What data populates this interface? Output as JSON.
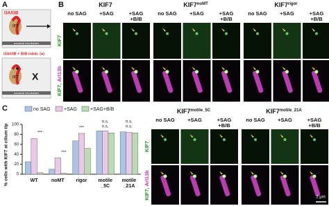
{
  "panel_labels": [
    "A",
    "B",
    "C"
  ],
  "panel_a": {
    "top_label": "I3A/I3B",
    "ift_top": "IFT",
    "bottom_label": "I3A/I3B + B/B inhib. (●)",
    "ift_bottom": "IFT",
    "block": "X",
    "axoneme_top": "axonemal microtubules",
    "axoneme_bottom": "axonemal microtubules"
  },
  "panel_b": {
    "groups": [
      {
        "name": "KIF7"
      },
      {
        "name": "KIF7",
        "sup": "noMT"
      },
      {
        "name": "KIF7",
        "sup": "rigor"
      }
    ],
    "columns": [
      [
        "no SAG"
      ],
      [
        "+SAG"
      ],
      [
        "+SAG",
        "+B/B"
      ]
    ],
    "rows": [
      [
        "KIF7"
      ],
      [
        "KIF7,",
        "Arl13b"
      ]
    ]
  },
  "panel_d": {
    "groups": [
      {
        "name": "KIF7",
        "sup": "motile_5C"
      },
      {
        "name": "KIF7",
        "sup": "motile_21A"
      }
    ],
    "columns": [
      [
        "no SAG"
      ],
      [
        "+SAG"
      ],
      [
        "+SAG",
        "+B/B"
      ]
    ],
    "rows": [
      [
        "KIF7"
      ],
      [
        "KIF7,",
        "Arl13b"
      ]
    ],
    "scale_bar": "2 μm"
  },
  "chart_data": {
    "type": "bar",
    "ylabel": "% cells with KIF7 at cilium tip",
    "categories": [
      "WT",
      "noMT",
      "rigor",
      "motile _5C",
      "motile _21A"
    ],
    "series": [
      {
        "name": "no SAG",
        "color": "#a9c4e6",
        "values": [
          25,
          10,
          67,
          87,
          85
        ]
      },
      {
        "name": "+SAG",
        "color": "#ebc8e8",
        "values": [
          72,
          33,
          82,
          87,
          84
        ]
      },
      {
        "name": "+SAG+B/B",
        "color": "#b9ddb2",
        "values": [
          3,
          2,
          52,
          83,
          83
        ]
      }
    ],
    "ylim": [
      0,
      100
    ],
    "yticks": [
      0,
      20,
      40,
      60,
      80,
      100
    ],
    "annotations": [
      "***",
      "***",
      "***",
      "n.s.",
      "n.s.",
      "n.s.",
      "n.s."
    ]
  }
}
